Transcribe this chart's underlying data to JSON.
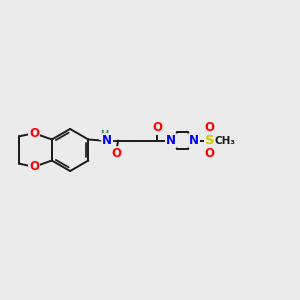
{
  "background_color": "#ebebeb",
  "fig_width": 3.0,
  "fig_height": 3.0,
  "dpi": 100,
  "bond_color": "#1a1a1a",
  "bond_lw": 1.4,
  "atom_colors": {
    "O": "#ff0000",
    "N_blue": "#0000ff",
    "N_teal": "#2e8b57",
    "S": "#cccc00",
    "C": "#1a1a1a"
  },
  "font_size_atom": 8.5,
  "font_size_small": 7.5,
  "xlim": [
    0,
    14
  ],
  "ylim": [
    0,
    10
  ]
}
